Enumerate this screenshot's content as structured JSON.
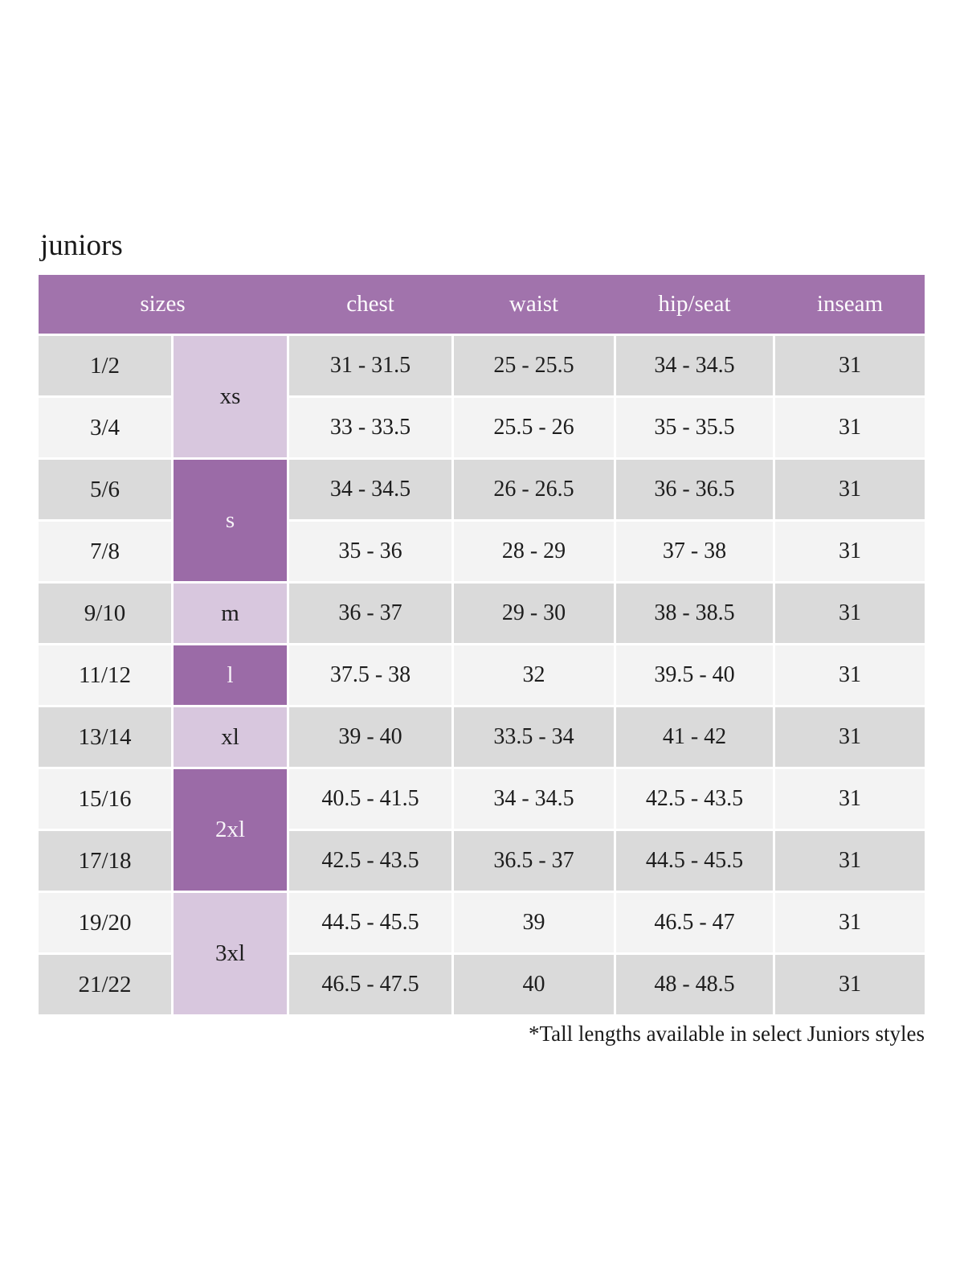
{
  "colors": {
    "header_bg": "#a173ac",
    "size_cell_purple": "#9b6ba7",
    "size_cell_lavender": "#d8c7de",
    "row_gray": "#dadada",
    "row_light": "#f3f3f3",
    "body_text": "#1d1d1d",
    "header_text": "#fdfcfd"
  },
  "chart_data": {
    "type": "table",
    "title": "juniors",
    "footnote": "*Tall lengths available in select Juniors styles",
    "columns": [
      "sizes",
      "chest",
      "waist",
      "hip/seat",
      "inseam"
    ],
    "size_groups": [
      {
        "label": "xs",
        "rows": 2,
        "tone": "lavender"
      },
      {
        "label": "s",
        "rows": 2,
        "tone": "purple"
      },
      {
        "label": "m",
        "rows": 1,
        "tone": "lavender"
      },
      {
        "label": "l",
        "rows": 1,
        "tone": "purple"
      },
      {
        "label": "xl",
        "rows": 1,
        "tone": "lavender"
      },
      {
        "label": "2xl",
        "rows": 2,
        "tone": "purple"
      },
      {
        "label": "3xl",
        "rows": 2,
        "tone": "lavender"
      }
    ],
    "rows": [
      {
        "size": "1/2",
        "chest": "31 - 31.5",
        "waist": "25 - 25.5",
        "hip_seat": "34 - 34.5",
        "inseam": "31",
        "band": "gray"
      },
      {
        "size": "3/4",
        "chest": "33 - 33.5",
        "waist": "25.5 - 26",
        "hip_seat": "35 - 35.5",
        "inseam": "31",
        "band": "light"
      },
      {
        "size": "5/6",
        "chest": "34 - 34.5",
        "waist": "26 - 26.5",
        "hip_seat": "36 - 36.5",
        "inseam": "31",
        "band": "gray"
      },
      {
        "size": "7/8",
        "chest": "35 - 36",
        "waist": "28 - 29",
        "hip_seat": "37 - 38",
        "inseam": "31",
        "band": "light"
      },
      {
        "size": "9/10",
        "chest": "36 - 37",
        "waist": "29 - 30",
        "hip_seat": "38 - 38.5",
        "inseam": "31",
        "band": "gray"
      },
      {
        "size": "11/12",
        "chest": "37.5 - 38",
        "waist": "32",
        "hip_seat": "39.5 - 40",
        "inseam": "31",
        "band": "light"
      },
      {
        "size": "13/14",
        "chest": "39 - 40",
        "waist": "33.5 - 34",
        "hip_seat": "41 - 42",
        "inseam": "31",
        "band": "gray"
      },
      {
        "size": "15/16",
        "chest": "40.5 - 41.5",
        "waist": "34 - 34.5",
        "hip_seat": "42.5 - 43.5",
        "inseam": "31",
        "band": "light"
      },
      {
        "size": "17/18",
        "chest": "42.5 - 43.5",
        "waist": "36.5 - 37",
        "hip_seat": "44.5 - 45.5",
        "inseam": "31",
        "band": "gray"
      },
      {
        "size": "19/20",
        "chest": "44.5 - 45.5",
        "waist": "39",
        "hip_seat": "46.5 - 47",
        "inseam": "31",
        "band": "light"
      },
      {
        "size": "21/22",
        "chest": "46.5 - 47.5",
        "waist": "40",
        "hip_seat": "48 - 48.5",
        "inseam": "31",
        "band": "gray"
      }
    ]
  }
}
